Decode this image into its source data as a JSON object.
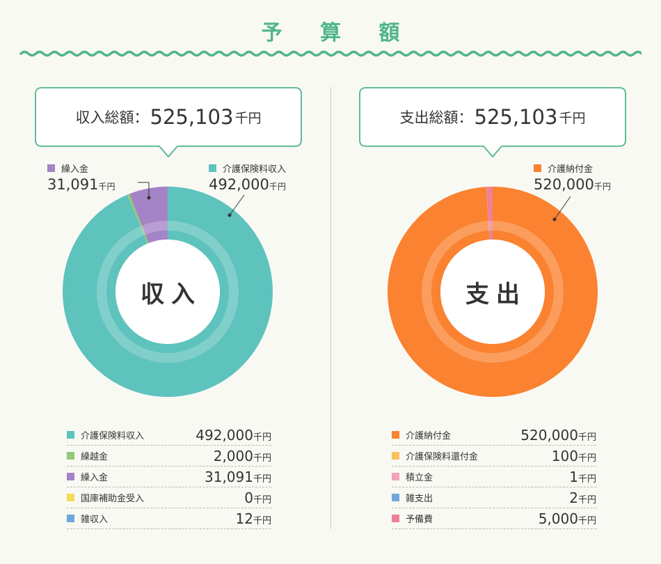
{
  "page_title": "予 算 額",
  "colors": {
    "title_green": "#4fb58c",
    "teal": "#5ec2bd",
    "green": "#90c978",
    "purple": "#a483c6",
    "yellow": "#f4da5a",
    "blue": "#6fa7dc",
    "orange": "#fa8230",
    "light_orange": "#f6c160",
    "pink": "#f4a3bc",
    "rose": "#ef8097"
  },
  "income": {
    "total_label": "収入総額：",
    "total_amount": "525,103",
    "total_unit": "千円",
    "center_label": "収入",
    "callouts": [
      {
        "label": "繰入金",
        "amount": "31,091",
        "unit": "千円",
        "color": "#a483c6"
      },
      {
        "label": "介護保険料収入",
        "amount": "492,000",
        "unit": "千円",
        "color": "#5ec2bd"
      }
    ],
    "items": [
      {
        "name": "介護保険料収入",
        "amount": "492,000",
        "unit": "千円",
        "color": "#5ec2bd"
      },
      {
        "name": "繰越金",
        "amount": "2,000",
        "unit": "千円",
        "color": "#90c978"
      },
      {
        "name": "繰入金",
        "amount": "31,091",
        "unit": "千円",
        "color": "#a483c6"
      },
      {
        "name": "国庫補助金受入",
        "amount": "0",
        "unit": "千円",
        "color": "#f4da5a"
      },
      {
        "name": "雑収入",
        "amount": "12",
        "unit": "千円",
        "color": "#6fa7dc"
      }
    ]
  },
  "expense": {
    "total_label": "支出総額：",
    "total_amount": "525,103",
    "total_unit": "千円",
    "center_label": "支出",
    "callouts": [
      {
        "label": "介護納付金",
        "amount": "520,000",
        "unit": "千円",
        "color": "#fa8230"
      }
    ],
    "items": [
      {
        "name": "介護納付金",
        "amount": "520,000",
        "unit": "千円",
        "color": "#fa8230"
      },
      {
        "name": "介護保険料還付金",
        "amount": "100",
        "unit": "千円",
        "color": "#f6c160"
      },
      {
        "name": "積立金",
        "amount": "1",
        "unit": "千円",
        "color": "#f4a3bc"
      },
      {
        "name": "雑支出",
        "amount": "2",
        "unit": "千円",
        "color": "#6fa7dc"
      },
      {
        "name": "予備費",
        "amount": "5,000",
        "unit": "千円",
        "color": "#ef8097"
      }
    ]
  },
  "chart_data": [
    {
      "type": "pie",
      "title": "収入",
      "categories": [
        "介護保険料収入",
        "繰越金",
        "繰入金",
        "国庫補助金受入",
        "雑収入"
      ],
      "values": [
        492000,
        2000,
        31091,
        0,
        12
      ],
      "unit": "千円",
      "total": 525103,
      "colors": [
        "#5ec2bd",
        "#90c978",
        "#a483c6",
        "#f4da5a",
        "#6fa7dc"
      ]
    },
    {
      "type": "pie",
      "title": "支出",
      "categories": [
        "介護納付金",
        "介護保険料還付金",
        "積立金",
        "雑支出",
        "予備費"
      ],
      "values": [
        520000,
        100,
        1,
        2,
        5000
      ],
      "unit": "千円",
      "total": 525103,
      "colors": [
        "#fa8230",
        "#f6c160",
        "#f4a3bc",
        "#6fa7dc",
        "#ef8097"
      ]
    }
  ]
}
